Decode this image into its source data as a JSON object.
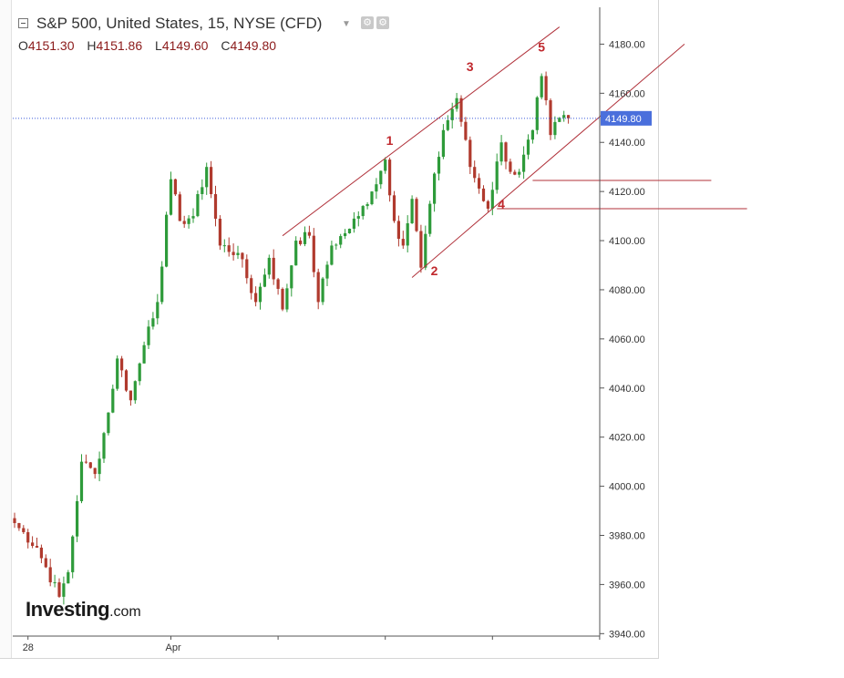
{
  "header": {
    "title": "S&P 500, United States, 15, NYSE (CFD)",
    "ohlc": {
      "o_label": "O",
      "o": "4151.30",
      "h_label": "H",
      "h": "4151.86",
      "l_label": "L",
      "l": "4149.60",
      "c_label": "C",
      "c": "4149.80"
    }
  },
  "logo": {
    "brand": "Investing",
    "tld": ".com"
  },
  "colors": {
    "up": "#2e9b3a",
    "down": "#b03a2e",
    "trend": "#b0313a",
    "price_line": "#3a5bd9",
    "price_tag": "#4a6fdc",
    "axis": "#555555"
  },
  "chart_data": {
    "type": "candlestick",
    "symbol": "S&P 500",
    "interval": "15",
    "y_ticks": [
      3940,
      3960,
      3980,
      4000,
      4020,
      4040,
      4060,
      4080,
      4100,
      4120,
      4140,
      4160,
      4180
    ],
    "y_tick_labels": [
      "3940.00",
      "3960.00",
      "3980.00",
      "4000.00",
      "4020.00",
      "4040.00",
      "4060.00",
      "4080.00",
      "4100.00",
      "4120.00",
      "4140.00",
      "4160.00",
      "4180.00"
    ],
    "ylim": [
      3939,
      4195
    ],
    "x_tick_labels": [
      {
        "label": "28",
        "bar": 3
      },
      {
        "label": "Apr",
        "bar": 35
      }
    ],
    "current_price": 4149.8,
    "current_price_label": "4149.80",
    "key_points": [
      {
        "bar": 0,
        "price": 3985
      },
      {
        "bar": 5,
        "price": 3975
      },
      {
        "bar": 10,
        "price": 3955
      },
      {
        "bar": 12,
        "price": 3965
      },
      {
        "bar": 15,
        "price": 4010
      },
      {
        "bar": 18,
        "price": 4005
      },
      {
        "bar": 21,
        "price": 4030
      },
      {
        "bar": 23,
        "price": 4052
      },
      {
        "bar": 26,
        "price": 4035
      },
      {
        "bar": 28,
        "price": 4050
      },
      {
        "bar": 30,
        "price": 4065
      },
      {
        "bar": 32,
        "price": 4075
      },
      {
        "bar": 35,
        "price": 4125
      },
      {
        "bar": 37,
        "price": 4108
      },
      {
        "bar": 40,
        "price": 4110
      },
      {
        "bar": 43,
        "price": 4130
      },
      {
        "bar": 46,
        "price": 4098
      },
      {
        "bar": 50,
        "price": 4095
      },
      {
        "bar": 54,
        "price": 4075
      },
      {
        "bar": 57,
        "price": 4093
      },
      {
        "bar": 60,
        "price": 4072
      },
      {
        "bar": 63,
        "price": 4100
      },
      {
        "bar": 66,
        "price": 4102
      },
      {
        "bar": 68,
        "price": 4075
      },
      {
        "bar": 71,
        "price": 4098
      },
      {
        "bar": 74,
        "price": 4103
      },
      {
        "bar": 77,
        "price": 4110
      },
      {
        "bar": 80,
        "price": 4120
      },
      {
        "bar": 83,
        "price": 4133
      },
      {
        "bar": 85,
        "price": 4108
      },
      {
        "bar": 87,
        "price": 4098
      },
      {
        "bar": 89,
        "price": 4117
      },
      {
        "bar": 91,
        "price": 4089
      },
      {
        "bar": 93,
        "price": 4115
      },
      {
        "bar": 96,
        "price": 4145
      },
      {
        "bar": 99,
        "price": 4158
      },
      {
        "bar": 102,
        "price": 4130
      },
      {
        "bar": 106,
        "price": 4113
      },
      {
        "bar": 109,
        "price": 4140
      },
      {
        "bar": 111,
        "price": 4128
      },
      {
        "bar": 113,
        "price": 4128
      },
      {
        "bar": 116,
        "price": 4145
      },
      {
        "bar": 118,
        "price": 4167
      },
      {
        "bar": 120,
        "price": 4143
      },
      {
        "bar": 122,
        "price": 4150
      },
      {
        "bar": 124,
        "price": 4149.8
      }
    ],
    "trendlines": [
      {
        "from": {
          "bar": 60,
          "price": 4102
        },
        "to": {
          "bar": 122,
          "price": 4187
        }
      },
      {
        "from": {
          "bar": 89,
          "price": 4085
        },
        "to": {
          "bar": 150,
          "price": 4180
        }
      }
    ],
    "horizontal_levels": [
      {
        "price": 4124.5,
        "from_bar": 116,
        "to_bar": 156
      },
      {
        "price": 4113,
        "from_bar": 108,
        "to_bar": 164
      }
    ],
    "wave_labels": [
      {
        "label": "1",
        "bar": 84,
        "price": 4139
      },
      {
        "label": "2",
        "bar": 94,
        "price": 4086
      },
      {
        "label": "3",
        "bar": 102,
        "price": 4169
      },
      {
        "label": "4",
        "bar": 109,
        "price": 4113
      },
      {
        "label": "5",
        "bar": 118,
        "price": 4177
      }
    ]
  }
}
